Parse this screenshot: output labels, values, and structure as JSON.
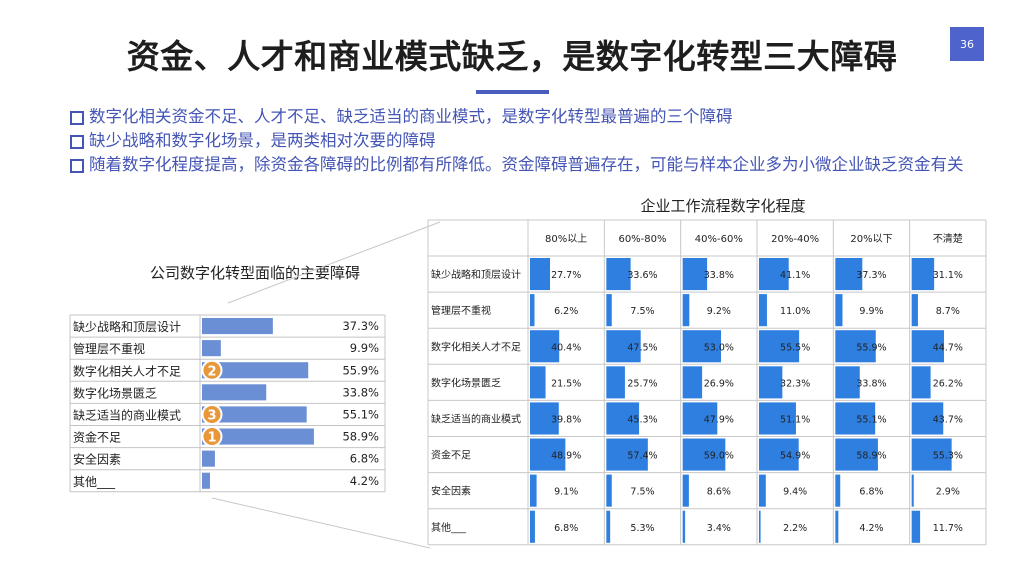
{
  "page": {
    "title": "资金、人才和商业模式缺乏，是数字化转型三大障碍",
    "page_number": "36",
    "bullets": [
      "数字化相关资金不足、人才不足、缺乏适当的商业模式，是数字化转型最普遍的三个障碍",
      "缺少战略和数字化场景，是两类相对次要的障碍",
      "随着数字化程度提高，除资金各障碍的比例都有所降低。资金障碍普遍存在，可能与样本企业多为小微企业缺乏资金有关"
    ],
    "accent_color": "#4a5dbd",
    "bullet_color": "#4455b5"
  },
  "chart_data": [
    {
      "type": "bar",
      "orientation": "horizontal",
      "title": "公司数字化转型面临的主要障碍",
      "categories": [
        "缺少战略和顶层设计",
        "管理层不重视",
        "数字化相关人才不足",
        "数字化场景匮乏",
        "缺乏适当的商业模式",
        "资金不足",
        "安全因素",
        "其他___"
      ],
      "values": [
        37.3,
        9.9,
        55.9,
        33.8,
        55.1,
        58.9,
        6.8,
        4.2
      ],
      "value_labels": [
        "37.3%",
        "9.9%",
        "55.9%",
        "33.8%",
        "55.1%",
        "58.9%",
        "6.8%",
        "4.2%"
      ],
      "rank_badges": [
        {
          "category": "资金不足",
          "rank": "1"
        },
        {
          "category": "数字化相关人才不足",
          "rank": "2"
        },
        {
          "category": "缺乏适当的商业模式",
          "rank": "3"
        }
      ],
      "xlim": [
        0,
        100
      ],
      "bar_color": "#6b8fd4",
      "badge_color": "#e8973a"
    },
    {
      "type": "table",
      "title": "企业工作流程数字化程度",
      "columns": [
        "80%以上",
        "60%-80%",
        "40%-60%",
        "20%-40%",
        "20%以下",
        "不清楚"
      ],
      "rows": [
        "缺少战略和顶层设计",
        "管理层不重视",
        "数字化相关人才不足",
        "数字化场景匮乏",
        "缺乏适当的商业模式",
        "资金不足",
        "安全因素",
        "其他___"
      ],
      "values": [
        [
          27.7,
          33.6,
          33.8,
          41.1,
          37.3,
          31.1
        ],
        [
          6.2,
          7.5,
          9.2,
          11.0,
          9.9,
          8.7
        ],
        [
          40.4,
          47.5,
          53.0,
          55.5,
          55.9,
          44.7
        ],
        [
          21.5,
          25.7,
          26.9,
          32.3,
          33.8,
          26.2
        ],
        [
          39.8,
          45.3,
          47.9,
          51.1,
          55.1,
          43.7
        ],
        [
          48.9,
          57.4,
          59.0,
          54.9,
          58.9,
          55.3
        ],
        [
          9.1,
          7.5,
          8.6,
          9.4,
          6.8,
          2.9
        ],
        [
          6.8,
          5.3,
          3.4,
          2.2,
          4.2,
          11.7
        ]
      ],
      "value_labels": [
        [
          "27.7%",
          "33.6%",
          "33.8%",
          "41.1%",
          "37.3%",
          "31.1%"
        ],
        [
          "6.2%",
          "7.5%",
          "9.2%",
          "11.0%",
          "9.9%",
          "8.7%"
        ],
        [
          "40.4%",
          "47.5%",
          "53.0%",
          "55.5%",
          "55.9%",
          "44.7%"
        ],
        [
          "21.5%",
          "25.7%",
          "26.9%",
          "32.3%",
          "33.8%",
          "26.2%"
        ],
        [
          "39.8%",
          "45.3%",
          "47.9%",
          "51.1%",
          "55.1%",
          "43.7%"
        ],
        [
          "48.9%",
          "57.4%",
          "59.0%",
          "54.9%",
          "58.9%",
          "55.3%"
        ],
        [
          "9.1%",
          "7.5%",
          "8.6%",
          "9.4%",
          "6.8%",
          "2.9%"
        ],
        [
          "6.8%",
          "5.3%",
          "3.4%",
          "2.2%",
          "4.2%",
          "11.7%"
        ]
      ],
      "cell_scale_max": 100,
      "bar_color": "#2f7fe0"
    }
  ]
}
